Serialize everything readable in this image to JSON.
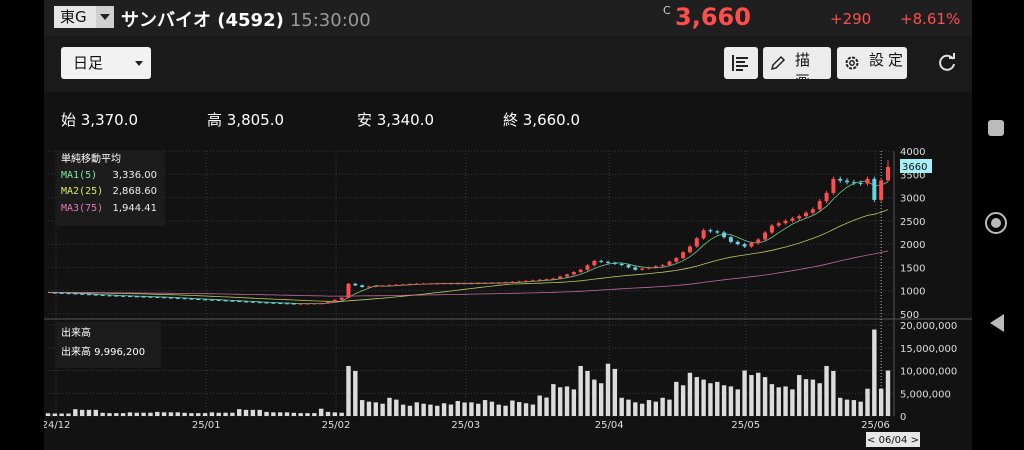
{
  "header": {
    "market": "東G",
    "stock_name": "サンバイオ (4592)",
    "time": "15:30:00",
    "price_flag": "C",
    "price": "3,660",
    "change": "+290",
    "change_pct": "+8.61%",
    "price_color": "#ff4d4d"
  },
  "toolbar": {
    "period": "日足",
    "draw_label": "描画",
    "settings_label": "設定",
    "icons": [
      "layout-icon",
      "pencil-icon",
      "gear-icon",
      "reload-icon"
    ]
  },
  "ohlc": {
    "open": "始 3,370.0",
    "high": "高 3,805.0",
    "low": "安 3,340.0",
    "close": "終 3,660.0"
  },
  "chart_data": {
    "type": "candlestick",
    "ylim": [
      500,
      4000
    ],
    "yticks": [
      500,
      1000,
      1500,
      2000,
      2500,
      3000,
      3500,
      4000
    ],
    "ytick_labels": [
      "500",
      "1000",
      "1500",
      "2000",
      "2500",
      "3000",
      "3500",
      "4000"
    ],
    "last_price_label": "3660",
    "x_labels": [
      "24/12",
      "25/01",
      "25/02",
      "25/03",
      "25/04",
      "25/05",
      "25/06"
    ],
    "x_label_days": [
      0,
      22,
      41,
      60,
      81,
      101,
      120
    ],
    "cursor_label": "< 06/04 >",
    "cursor_day": 122,
    "ma_panel": {
      "title": "単純移動平均",
      "items": [
        {
          "label": "MA1(5)",
          "value": "3,336.00",
          "color": "#7fe9a6"
        },
        {
          "label": "MA2(25)",
          "value": "2,868.60",
          "color": "#d8e86e"
        },
        {
          "label": "MA3(75)",
          "value": "1,944.41",
          "color": "#e27ab3"
        }
      ]
    },
    "up_color": "#ff4d4d",
    "down_color": "#69d0e6",
    "close_series": [
      [
        0,
        960
      ],
      [
        4,
        935
      ],
      [
        8,
        900
      ],
      [
        12,
        880
      ],
      [
        16,
        860
      ],
      [
        20,
        830
      ],
      [
        24,
        800
      ],
      [
        28,
        770
      ],
      [
        32,
        740
      ],
      [
        36,
        720
      ],
      [
        40,
        730
      ],
      [
        41,
        760
      ],
      [
        43,
        850
      ],
      [
        44,
        1150
      ],
      [
        46,
        1080
      ],
      [
        50,
        1120
      ],
      [
        54,
        1150
      ],
      [
        58,
        1160
      ],
      [
        62,
        1160
      ],
      [
        66,
        1170
      ],
      [
        70,
        1210
      ],
      [
        74,
        1260
      ],
      [
        76,
        1350
      ],
      [
        78,
        1450
      ],
      [
        80,
        1640
      ],
      [
        82,
        1600
      ],
      [
        84,
        1550
      ],
      [
        86,
        1450
      ],
      [
        88,
        1500
      ],
      [
        90,
        1550
      ],
      [
        92,
        1700
      ],
      [
        94,
        1950
      ],
      [
        96,
        2300
      ],
      [
        98,
        2250
      ],
      [
        100,
        2050
      ],
      [
        102,
        1950
      ],
      [
        104,
        2100
      ],
      [
        106,
        2400
      ],
      [
        108,
        2500
      ],
      [
        110,
        2600
      ],
      [
        112,
        2750
      ],
      [
        114,
        3100
      ],
      [
        115,
        3400
      ],
      [
        117,
        3330
      ],
      [
        119,
        3300
      ],
      [
        120,
        3400
      ],
      [
        121,
        2950
      ],
      [
        122,
        3370
      ],
      [
        123,
        3660
      ]
    ],
    "ohlc_last": {
      "open": 3370,
      "high": 3805,
      "low": 3340,
      "close": 3660
    },
    "volume": {
      "title": "出来高",
      "value_label": "出来高 9,996,200",
      "ylim": [
        0,
        20000000
      ],
      "ytick_labels": [
        "20,000,000",
        "15,000,000",
        "10,000,000",
        "5,000,000",
        "0"
      ],
      "bars": [
        [
          0,
          600000
        ],
        [
          4,
          1500000
        ],
        [
          8,
          700000
        ],
        [
          12,
          800000
        ],
        [
          16,
          900000
        ],
        [
          20,
          700000
        ],
        [
          24,
          800000
        ],
        [
          28,
          1500000
        ],
        [
          32,
          900000
        ],
        [
          36,
          700000
        ],
        [
          40,
          1600000
        ],
        [
          41,
          900000
        ],
        [
          42,
          800000
        ],
        [
          44,
          11000000
        ],
        [
          46,
          3500000
        ],
        [
          48,
          3000000
        ],
        [
          50,
          4000000
        ],
        [
          52,
          2500000
        ],
        [
          54,
          3000000
        ],
        [
          56,
          2500000
        ],
        [
          58,
          2800000
        ],
        [
          60,
          3300000
        ],
        [
          62,
          3000000
        ],
        [
          64,
          3500000
        ],
        [
          66,
          2500000
        ],
        [
          68,
          3400000
        ],
        [
          70,
          2800000
        ],
        [
          72,
          4500000
        ],
        [
          74,
          7000000
        ],
        [
          76,
          6500000
        ],
        [
          78,
          11000000
        ],
        [
          80,
          8000000
        ],
        [
          82,
          11500000
        ],
        [
          84,
          4000000
        ],
        [
          86,
          3000000
        ],
        [
          88,
          3500000
        ],
        [
          90,
          4000000
        ],
        [
          92,
          7500000
        ],
        [
          94,
          9500000
        ],
        [
          96,
          8000000
        ],
        [
          98,
          7500000
        ],
        [
          100,
          6500000
        ],
        [
          102,
          10000000
        ],
        [
          104,
          9500000
        ],
        [
          106,
          7000000
        ],
        [
          108,
          6500000
        ],
        [
          110,
          9000000
        ],
        [
          112,
          8000000
        ],
        [
          114,
          11000000
        ],
        [
          116,
          4000000
        ],
        [
          118,
          3500000
        ],
        [
          120,
          6000000
        ],
        [
          121,
          19000000
        ],
        [
          122,
          6000000
        ],
        [
          123,
          9996200
        ]
      ]
    }
  }
}
